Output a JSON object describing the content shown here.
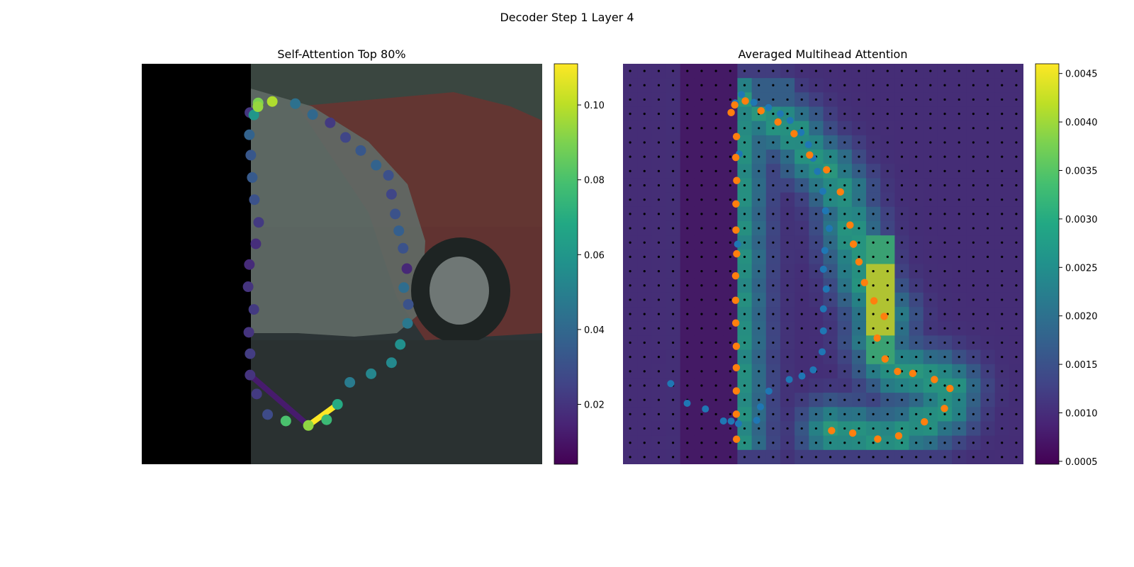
{
  "figure": {
    "title": "Decoder Step 1 Layer 4"
  },
  "colors": {
    "viridis": [
      "#440154",
      "#482475",
      "#414487",
      "#355f8d",
      "#2a788e",
      "#21918c",
      "#22a884",
      "#44bf70",
      "#7ad151",
      "#bddf26",
      "#fde725"
    ],
    "overlay_points": "#1f77b4",
    "query_points": "#ff7f0e",
    "grid_dots": "#000000",
    "mask": "#000000"
  },
  "chart_data": [
    {
      "type": "scatter",
      "title": "Self-Attention Top 80%",
      "image_extent": [
        0,
        224
      ],
      "colorbar": {
        "range": [
          0.004,
          0.111
        ],
        "ticks": [
          0.02,
          0.04,
          0.06,
          0.08,
          0.1
        ],
        "tick_labels": [
          "0.02",
          "0.04",
          "0.06",
          "0.08",
          "0.10"
        ]
      },
      "points": [
        {
          "x": 60.5,
          "y": 27.3,
          "v": 0.021
        },
        {
          "x": 65.1,
          "y": 21.9,
          "v": 0.09
        },
        {
          "x": 73.0,
          "y": 21.1,
          "v": 0.098
        },
        {
          "x": 85.9,
          "y": 22.3,
          "v": 0.044
        },
        {
          "x": 95.6,
          "y": 28.4,
          "v": 0.04
        },
        {
          "x": 105.4,
          "y": 33.0,
          "v": 0.022
        },
        {
          "x": 114.0,
          "y": 41.2,
          "v": 0.026
        },
        {
          "x": 122.5,
          "y": 48.5,
          "v": 0.033
        },
        {
          "x": 131.1,
          "y": 56.7,
          "v": 0.038
        },
        {
          "x": 138.0,
          "y": 62.4,
          "v": 0.03
        },
        {
          "x": 139.7,
          "y": 73.0,
          "v": 0.026
        },
        {
          "x": 141.8,
          "y": 84.0,
          "v": 0.031
        },
        {
          "x": 143.8,
          "y": 93.4,
          "v": 0.036
        },
        {
          "x": 146.2,
          "y": 103.2,
          "v": 0.031
        },
        {
          "x": 148.3,
          "y": 114.6,
          "v": 0.016
        },
        {
          "x": 146.6,
          "y": 125.2,
          "v": 0.042
        },
        {
          "x": 149.1,
          "y": 134.6,
          "v": 0.031
        },
        {
          "x": 148.7,
          "y": 145.2,
          "v": 0.047
        },
        {
          "x": 144.6,
          "y": 157.0,
          "v": 0.057
        },
        {
          "x": 139.7,
          "y": 167.2,
          "v": 0.054
        },
        {
          "x": 128.3,
          "y": 173.4,
          "v": 0.053
        },
        {
          "x": 116.4,
          "y": 178.2,
          "v": 0.048
        },
        {
          "x": 109.5,
          "y": 190.5,
          "v": 0.069
        },
        {
          "x": 103.4,
          "y": 199.1,
          "v": 0.076
        },
        {
          "x": 93.2,
          "y": 202.3,
          "v": 0.093
        },
        {
          "x": 80.6,
          "y": 199.8,
          "v": 0.08
        },
        {
          "x": 70.4,
          "y": 196.2,
          "v": 0.028
        },
        {
          "x": 64.3,
          "y": 184.7,
          "v": 0.022
        },
        {
          "x": 60.6,
          "y": 174.1,
          "v": 0.02
        },
        {
          "x": 60.6,
          "y": 162.2,
          "v": 0.023
        },
        {
          "x": 59.9,
          "y": 150.2,
          "v": 0.02
        },
        {
          "x": 62.7,
          "y": 137.4,
          "v": 0.022
        },
        {
          "x": 59.5,
          "y": 124.7,
          "v": 0.02
        },
        {
          "x": 60.2,
          "y": 112.3,
          "v": 0.017
        },
        {
          "x": 63.8,
          "y": 100.7,
          "v": 0.018
        },
        {
          "x": 65.4,
          "y": 88.7,
          "v": 0.022
        },
        {
          "x": 63.0,
          "y": 76.0,
          "v": 0.031
        },
        {
          "x": 61.8,
          "y": 63.6,
          "v": 0.034
        },
        {
          "x": 61.0,
          "y": 51.1,
          "v": 0.033
        },
        {
          "x": 60.2,
          "y": 39.7,
          "v": 0.038
        },
        {
          "x": 62.7,
          "y": 28.6,
          "v": 0.06
        },
        {
          "x": 65.0,
          "y": 24.0,
          "v": 0.094
        }
      ],
      "attention_segments": [
        {
          "x1": 93.2,
          "y1": 202.3,
          "x2": 109.5,
          "y2": 190.5,
          "v": 0.111
        },
        {
          "x1": 60.6,
          "y1": 174.1,
          "x2": 93.2,
          "y2": 202.3,
          "v": 0.012
        }
      ]
    },
    {
      "type": "heatmap",
      "title": "Averaged Multihead Attention",
      "image_extent": [
        0,
        224
      ],
      "grid_size": 28,
      "colorbar": {
        "range": [
          0.00047,
          0.0046
        ],
        "ticks": [
          0.0005,
          0.001,
          0.0015,
          0.002,
          0.0025,
          0.003,
          0.0035,
          0.004,
          0.0045
        ],
        "tick_labels": [
          "0.0005",
          "0.0010",
          "0.0015",
          "0.0020",
          "0.0025",
          "0.0030",
          "0.0035",
          "0.0040",
          "0.0045"
        ]
      },
      "series": [
        {
          "points_ref": "overlay"
        },
        {
          "points_ref": "query"
        }
      ],
      "overlay_points": [
        [
          62.8,
          21.9
        ],
        [
          66.3,
          17.2
        ],
        [
          73.2,
          21.6
        ],
        [
          81.4,
          24.5
        ],
        [
          88.0,
          28.0
        ],
        [
          93.5,
          31.7
        ],
        [
          99.6,
          38.4
        ],
        [
          103.7,
          45.2
        ],
        [
          106.3,
          52.8
        ],
        [
          108.8,
          60.2
        ],
        [
          111.8,
          71.3
        ],
        [
          113.3,
          82.2
        ],
        [
          115.4,
          92.1
        ],
        [
          112.9,
          104.4
        ],
        [
          112.1,
          114.9
        ],
        [
          113.7,
          126.0
        ],
        [
          112.1,
          137.1
        ],
        [
          112.1,
          149.4
        ],
        [
          111.4,
          161.1
        ],
        [
          106.4,
          171.2
        ],
        [
          100.1,
          174.7
        ],
        [
          93.0,
          176.6
        ],
        [
          81.6,
          183.1
        ],
        [
          76.9,
          191.9
        ],
        [
          74.8,
          199.4
        ],
        [
          64.6,
          201.3
        ],
        [
          56.2,
          199.8
        ],
        [
          46.1,
          193.1
        ],
        [
          35.9,
          189.9
        ],
        [
          26.7,
          178.9
        ],
        [
          65.0,
          50.4
        ],
        [
          64.1,
          100.9
        ],
        [
          60.5,
          199.9
        ]
      ],
      "query_points": [
        [
          60.5,
          27.3
        ],
        [
          62.5,
          23.0
        ],
        [
          68.4,
          20.8
        ],
        [
          77.2,
          26.3
        ],
        [
          86.7,
          32.6
        ],
        [
          95.7,
          39.1
        ],
        [
          104.4,
          51.0
        ],
        [
          113.9,
          59.3
        ],
        [
          121.6,
          71.7
        ],
        [
          127.0,
          90.2
        ],
        [
          128.9,
          100.9
        ],
        [
          132.0,
          110.8
        ],
        [
          135.1,
          122.4
        ],
        [
          140.4,
          132.6
        ],
        [
          146.1,
          141.3
        ],
        [
          142.2,
          153.4
        ],
        [
          146.6,
          165.1
        ],
        [
          153.6,
          172.1
        ],
        [
          162.1,
          173.2
        ],
        [
          174.2,
          176.6
        ],
        [
          182.9,
          181.6
        ],
        [
          179.8,
          192.8
        ],
        [
          168.6,
          200.3
        ],
        [
          154.2,
          208.1
        ],
        [
          142.5,
          209.9
        ],
        [
          128.5,
          206.6
        ],
        [
          116.7,
          205.2
        ],
        [
          63.5,
          40.7
        ],
        [
          63.1,
          52.4
        ],
        [
          63.6,
          65.3
        ],
        [
          63.2,
          78.4
        ],
        [
          63.2,
          93.0
        ],
        [
          63.6,
          106.3
        ],
        [
          63.0,
          118.6
        ],
        [
          63.0,
          132.3
        ],
        [
          63.1,
          145.0
        ],
        [
          63.4,
          158.0
        ],
        [
          63.4,
          170.0
        ],
        [
          63.4,
          183.0
        ],
        [
          63.4,
          196.0
        ],
        [
          63.5,
          210.0
        ]
      ]
    }
  ]
}
